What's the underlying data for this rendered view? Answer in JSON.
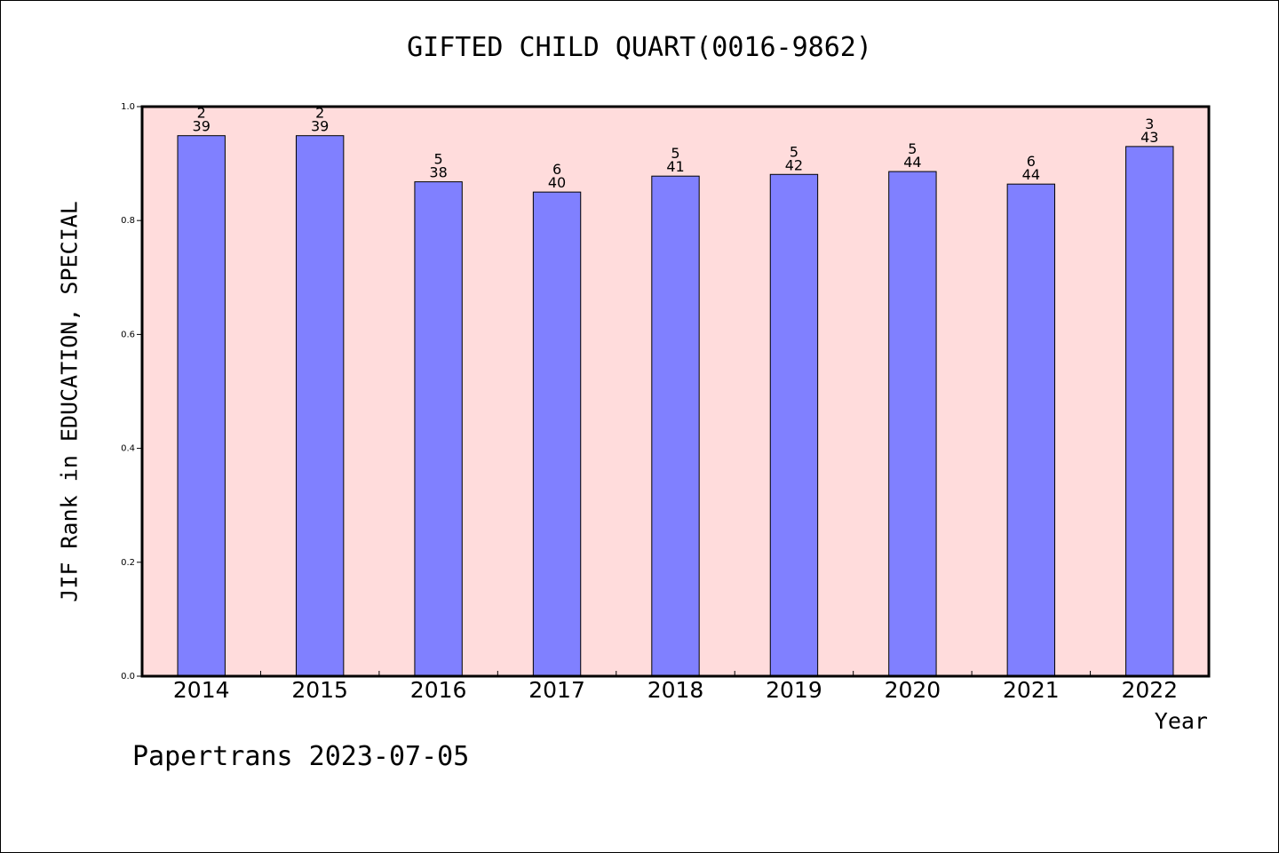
{
  "chart_data": {
    "type": "bar",
    "title": "GIFTED CHILD QUART(0016-9862)",
    "xlabel": "Year",
    "ylabel": "JIF Rank in EDUCATION, SPECIAL",
    "categories": [
      "2014",
      "2015",
      "2016",
      "2017",
      "2018",
      "2019",
      "2020",
      "2021",
      "2022"
    ],
    "values": [
      0.949,
      0.949,
      0.868,
      0.85,
      0.878,
      0.881,
      0.886,
      0.864,
      0.93
    ],
    "rank": [
      "2",
      "2",
      "5",
      "6",
      "5",
      "5",
      "5",
      "6",
      "3"
    ],
    "total": [
      "39",
      "39",
      "38",
      "40",
      "41",
      "42",
      "44",
      "44",
      "43"
    ],
    "ylim": [
      0,
      1.0
    ],
    "yticks": [
      "0.0",
      "0.2",
      "0.4",
      "0.6",
      "0.8",
      "1.0"
    ],
    "grid": false,
    "bar_color": "#8080ff",
    "plot_background": "#ffdcdc"
  },
  "footer": "Papertrans 2023-07-05"
}
